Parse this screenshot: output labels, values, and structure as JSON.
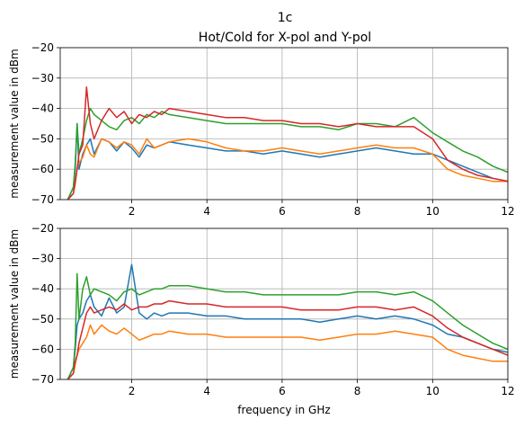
{
  "title": "1c",
  "subtitle": "Hot/Cold for X-pol and Y-pol",
  "colors": [
    "#1f77b4",
    "#ff7f0e",
    "#2ca02c",
    "#d62728"
  ],
  "chart_data": [
    {
      "type": "line",
      "xlabel": "",
      "ylabel": "measurement value in dBm",
      "xlim": [
        0.1,
        12
      ],
      "ylim": [
        -70,
        -20
      ],
      "xticks": [
        2,
        4,
        6,
        8,
        10,
        12
      ],
      "yticks": [
        -70,
        -60,
        -50,
        -40,
        -30,
        -20
      ],
      "grid": true,
      "series": [
        {
          "x": [
            0.3,
            0.45,
            0.5,
            0.55,
            0.6,
            0.7,
            0.8,
            0.9,
            1.0,
            1.2,
            1.4,
            1.6,
            1.8,
            2.0,
            2.2,
            2.4,
            2.6,
            2.8,
            3.0,
            3.5,
            4.0,
            4.5,
            5.0,
            5.5,
            6.0,
            6.5,
            7.0,
            7.5,
            8.0,
            8.5,
            9.0,
            9.5,
            10.0,
            10.4,
            10.8,
            11.2,
            11.6,
            12.0
          ],
          "y": [
            -70,
            -66,
            -60,
            -45,
            -60,
            -55,
            -52,
            -50,
            -55,
            -50,
            -51,
            -54,
            -51,
            -53,
            -56,
            -52,
            -53,
            -52,
            -51,
            -52,
            -53,
            -54,
            -54,
            -55,
            -54,
            -55,
            -56,
            -55,
            -54,
            -53,
            -54,
            -55,
            -55,
            -57,
            -59,
            -61,
            -63,
            -64
          ]
        },
        {
          "x": [
            0.3,
            0.45,
            0.5,
            0.55,
            0.6,
            0.7,
            0.8,
            0.9,
            1.0,
            1.2,
            1.4,
            1.6,
            1.8,
            2.0,
            2.2,
            2.4,
            2.6,
            2.8,
            3.0,
            3.5,
            4.0,
            4.5,
            5.0,
            5.5,
            6.0,
            6.5,
            7.0,
            7.5,
            8.0,
            8.5,
            9.0,
            9.5,
            10.0,
            10.4,
            10.8,
            11.2,
            11.6,
            12.0
          ],
          "y": [
            -70,
            -68,
            -65,
            -60,
            -58,
            -56,
            -52,
            -55,
            -56,
            -50,
            -51,
            -53,
            -51,
            -52,
            -55,
            -50,
            -53,
            -52,
            -51,
            -50,
            -51,
            -53,
            -54,
            -54,
            -53,
            -54,
            -55,
            -54,
            -53,
            -52,
            -53,
            -53,
            -55,
            -60,
            -62,
            -63,
            -64,
            -64
          ]
        },
        {
          "x": [
            0.3,
            0.45,
            0.5,
            0.55,
            0.6,
            0.7,
            0.8,
            0.9,
            1.0,
            1.2,
            1.4,
            1.6,
            1.8,
            2.0,
            2.2,
            2.4,
            2.6,
            2.8,
            3.0,
            3.5,
            4.0,
            4.5,
            5.0,
            5.5,
            6.0,
            6.5,
            7.0,
            7.5,
            8.0,
            8.5,
            9.0,
            9.5,
            10.0,
            10.4,
            10.8,
            11.2,
            11.6,
            12.0
          ],
          "y": [
            -70,
            -66,
            -58,
            -45,
            -55,
            -50,
            -44,
            -40,
            -42,
            -44,
            -46,
            -47,
            -44,
            -43,
            -45,
            -42,
            -43,
            -41,
            -42,
            -43,
            -44,
            -45,
            -45,
            -45,
            -45,
            -46,
            -46,
            -47,
            -45,
            -45,
            -46,
            -43,
            -48,
            -51,
            -54,
            -56,
            -59,
            -61
          ]
        },
        {
          "x": [
            0.3,
            0.45,
            0.5,
            0.55,
            0.6,
            0.7,
            0.8,
            0.9,
            1.0,
            1.2,
            1.4,
            1.6,
            1.8,
            2.0,
            2.2,
            2.4,
            2.6,
            2.8,
            3.0,
            3.5,
            4.0,
            4.5,
            5.0,
            5.5,
            6.0,
            6.5,
            7.0,
            7.5,
            8.0,
            8.5,
            9.0,
            9.5,
            10.0,
            10.4,
            10.8,
            11.2,
            11.6,
            12.0
          ],
          "y": [
            -70,
            -68,
            -64,
            -60,
            -55,
            -52,
            -33,
            -45,
            -50,
            -44,
            -40,
            -43,
            -41,
            -45,
            -42,
            -43,
            -41,
            -42,
            -40,
            -41,
            -42,
            -43,
            -43,
            -44,
            -44,
            -45,
            -45,
            -46,
            -45,
            -46,
            -46,
            -46,
            -50,
            -57,
            -60,
            -62,
            -63,
            -64
          ]
        }
      ]
    },
    {
      "type": "line",
      "xlabel": "frequency in GHz",
      "ylabel": "measurement value in dBm",
      "xlim": [
        0.1,
        12
      ],
      "ylim": [
        -70,
        -20
      ],
      "xticks": [
        2,
        4,
        6,
        8,
        10,
        12
      ],
      "yticks": [
        -70,
        -60,
        -50,
        -40,
        -30,
        -20
      ],
      "grid": true,
      "series": [
        {
          "x": [
            0.3,
            0.45,
            0.5,
            0.55,
            0.6,
            0.7,
            0.8,
            0.9,
            1.0,
            1.2,
            1.4,
            1.6,
            1.8,
            2.0,
            2.2,
            2.4,
            2.6,
            2.8,
            3.0,
            3.5,
            4.0,
            4.5,
            5.0,
            5.5,
            6.0,
            6.5,
            7.0,
            7.5,
            8.0,
            8.5,
            9.0,
            9.5,
            10.0,
            10.4,
            10.8,
            11.2,
            11.6,
            12.0
          ],
          "y": [
            -70,
            -66,
            -60,
            -52,
            -50,
            -48,
            -44,
            -42,
            -46,
            -49,
            -43,
            -48,
            -46,
            -32,
            -48,
            -50,
            -48,
            -49,
            -48,
            -48,
            -49,
            -49,
            -50,
            -50,
            -50,
            -50,
            -51,
            -50,
            -49,
            -50,
            -49,
            -50,
            -52,
            -55,
            -56,
            -58,
            -60,
            -61
          ]
        },
        {
          "x": [
            0.3,
            0.45,
            0.5,
            0.55,
            0.6,
            0.7,
            0.8,
            0.9,
            1.0,
            1.2,
            1.4,
            1.6,
            1.8,
            2.0,
            2.2,
            2.4,
            2.6,
            2.8,
            3.0,
            3.5,
            4.0,
            4.5,
            5.0,
            5.5,
            6.0,
            6.5,
            7.0,
            7.5,
            8.0,
            8.5,
            9.0,
            9.5,
            10.0,
            10.4,
            10.8,
            11.2,
            11.6,
            12.0
          ],
          "y": [
            -70,
            -68,
            -65,
            -62,
            -60,
            -58,
            -56,
            -52,
            -55,
            -52,
            -54,
            -55,
            -53,
            -55,
            -57,
            -56,
            -55,
            -55,
            -54,
            -55,
            -55,
            -56,
            -56,
            -56,
            -56,
            -56,
            -57,
            -56,
            -55,
            -55,
            -54,
            -55,
            -56,
            -60,
            -62,
            -63,
            -64,
            -64
          ]
        },
        {
          "x": [
            0.3,
            0.45,
            0.5,
            0.55,
            0.6,
            0.7,
            0.8,
            0.9,
            1.0,
            1.2,
            1.4,
            1.6,
            1.8,
            2.0,
            2.2,
            2.4,
            2.6,
            2.8,
            3.0,
            3.5,
            4.0,
            4.5,
            5.0,
            5.5,
            6.0,
            6.5,
            7.0,
            7.5,
            8.0,
            8.5,
            9.0,
            9.5,
            10.0,
            10.4,
            10.8,
            11.2,
            11.6,
            12.0
          ],
          "y": [
            -70,
            -66,
            -58,
            -35,
            -50,
            -40,
            -36,
            -42,
            -40,
            -41,
            -42,
            -44,
            -41,
            -40,
            -42,
            -41,
            -40,
            -40,
            -39,
            -39,
            -40,
            -41,
            -41,
            -42,
            -42,
            -42,
            -42,
            -42,
            -41,
            -41,
            -42,
            -41,
            -44,
            -48,
            -52,
            -55,
            -58,
            -60
          ]
        },
        {
          "x": [
            0.3,
            0.45,
            0.5,
            0.55,
            0.6,
            0.7,
            0.8,
            0.9,
            1.0,
            1.2,
            1.4,
            1.6,
            1.8,
            2.0,
            2.2,
            2.4,
            2.6,
            2.8,
            3.0,
            3.5,
            4.0,
            4.5,
            5.0,
            5.5,
            6.0,
            6.5,
            7.0,
            7.5,
            8.0,
            8.5,
            9.0,
            9.5,
            10.0,
            10.4,
            10.8,
            11.2,
            11.6,
            12.0
          ],
          "y": [
            -70,
            -68,
            -64,
            -62,
            -58,
            -53,
            -48,
            -46,
            -48,
            -47,
            -46,
            -47,
            -45,
            -47,
            -46,
            -46,
            -45,
            -45,
            -44,
            -45,
            -45,
            -46,
            -46,
            -46,
            -46,
            -47,
            -47,
            -47,
            -46,
            -46,
            -47,
            -46,
            -49,
            -53,
            -56,
            -58,
            -60,
            -62
          ]
        }
      ]
    }
  ]
}
